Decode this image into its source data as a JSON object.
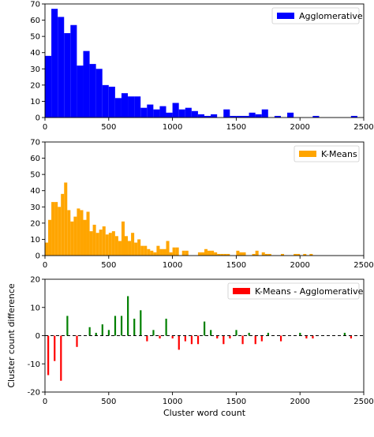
{
  "chart_data": [
    {
      "type": "bar",
      "legend": "Agglomerative",
      "legend_position": "top-right",
      "color": "#0000ff",
      "bin_width": 50,
      "xlim": [
        0,
        2500
      ],
      "ylim": [
        0,
        70
      ],
      "xticks": [
        0,
        500,
        1000,
        1500,
        2000,
        2500
      ],
      "yticks": [
        0,
        10,
        20,
        30,
        40,
        50,
        60,
        70
      ],
      "x": [
        0,
        50,
        100,
        150,
        200,
        250,
        300,
        350,
        400,
        450,
        500,
        550,
        600,
        650,
        700,
        750,
        800,
        850,
        900,
        950,
        1000,
        1050,
        1100,
        1150,
        1200,
        1250,
        1300,
        1350,
        1400,
        1450,
        1500,
        1550,
        1600,
        1650,
        1700,
        1750,
        1800,
        1850,
        1900,
        1950,
        2000,
        2050,
        2100,
        2150,
        2200,
        2250,
        2300,
        2350,
        2400
      ],
      "values": [
        38,
        67,
        62,
        52,
        57,
        32,
        41,
        33,
        30,
        20,
        19,
        12,
        15,
        13,
        13,
        6,
        8,
        5,
        7,
        3,
        9,
        5,
        6,
        4,
        2,
        1,
        2,
        0,
        5,
        1,
        1,
        1,
        3,
        2,
        5,
        0,
        1,
        0,
        3,
        0,
        0,
        0,
        1,
        0,
        0,
        0,
        0,
        0,
        1
      ],
      "xlabel": "",
      "ylabel": ""
    },
    {
      "type": "bar",
      "legend": "K-Means",
      "legend_position": "top-right",
      "color": "#ffa500",
      "bin_width": 25,
      "xlim": [
        0,
        2500
      ],
      "ylim": [
        0,
        70
      ],
      "xticks": [
        0,
        500,
        1000,
        1500,
        2000,
        2500
      ],
      "yticks": [
        0,
        10,
        20,
        30,
        40,
        50,
        60,
        70
      ],
      "x": [
        0,
        25,
        50,
        75,
        100,
        125,
        150,
        175,
        200,
        225,
        250,
        275,
        300,
        325,
        350,
        375,
        400,
        425,
        450,
        475,
        500,
        525,
        550,
        575,
        600,
        625,
        650,
        675,
        700,
        725,
        750,
        775,
        800,
        825,
        850,
        875,
        900,
        925,
        950,
        975,
        1000,
        1025,
        1050,
        1075,
        1100,
        1125,
        1150,
        1175,
        1200,
        1225,
        1250,
        1275,
        1300,
        1325,
        1350,
        1375,
        1400,
        1425,
        1450,
        1475,
        1500,
        1525,
        1550,
        1575,
        1600,
        1625,
        1650,
        1675,
        1700,
        1725,
        1750,
        1775,
        1800,
        1825,
        1850,
        1875,
        1900,
        1925,
        1950,
        1975,
        2000,
        2025,
        2050,
        2075,
        2100,
        2125,
        2150,
        2175,
        2200,
        2225,
        2250,
        2275,
        2300,
        2325,
        2350,
        2375,
        2400,
        2425,
        2450,
        2475
      ],
      "values": [
        8,
        22,
        33,
        33,
        30,
        38,
        45,
        28,
        21,
        24,
        29,
        28,
        22,
        27,
        15,
        19,
        14,
        16,
        18,
        13,
        14,
        15,
        12,
        9,
        21,
        12,
        9,
        14,
        8,
        10,
        6,
        6,
        4,
        3,
        2,
        6,
        4,
        4,
        9,
        2,
        5,
        5,
        0,
        3,
        3,
        0,
        0,
        0,
        2,
        2,
        4,
        3,
        3,
        2,
        1,
        1,
        1,
        1,
        0,
        0,
        3,
        2,
        2,
        0,
        0,
        1,
        3,
        0,
        2,
        1,
        1,
        0,
        0,
        0,
        1,
        0,
        0,
        0,
        1,
        1,
        0,
        1,
        0,
        1,
        0,
        0,
        0,
        0,
        0,
        0,
        0,
        0,
        0,
        0,
        0,
        0,
        0,
        0,
        0,
        0
      ],
      "xlabel": "",
      "ylabel": ""
    },
    {
      "type": "bar",
      "legend": "K-Means - Agglomerative",
      "legend_position": "top-right",
      "colors": {
        "positive": "#008000",
        "negative": "#ff0000"
      },
      "xlim": [
        0,
        2500
      ],
      "ylim": [
        -20,
        20
      ],
      "xticks": [
        0,
        500,
        1000,
        1500,
        2000,
        2500
      ],
      "yticks": [
        -20,
        -10,
        0,
        10,
        20
      ],
      "x": [
        25,
        75,
        125,
        175,
        250,
        350,
        400,
        450,
        500,
        550,
        600,
        650,
        700,
        750,
        800,
        850,
        900,
        950,
        1000,
        1050,
        1100,
        1150,
        1200,
        1250,
        1300,
        1350,
        1400,
        1450,
        1500,
        1550,
        1600,
        1650,
        1700,
        1750,
        1800,
        1850,
        2000,
        2050,
        2100,
        2150,
        2200,
        2250,
        2350,
        2400
      ],
      "values": [
        -14,
        -9,
        -16,
        7,
        -4,
        3,
        1,
        4,
        2,
        7,
        7,
        14,
        6,
        9,
        -2,
        2,
        -1,
        6,
        -1,
        -5,
        -2,
        -3,
        -3,
        5,
        2,
        -1,
        -3,
        -1,
        2,
        -3,
        1,
        -3,
        -2,
        1,
        0,
        -2,
        1,
        -1,
        -1,
        0,
        0,
        0,
        1,
        -1
      ],
      "xlabel": "Cluster word count",
      "ylabel": "Cluster count difference"
    }
  ]
}
